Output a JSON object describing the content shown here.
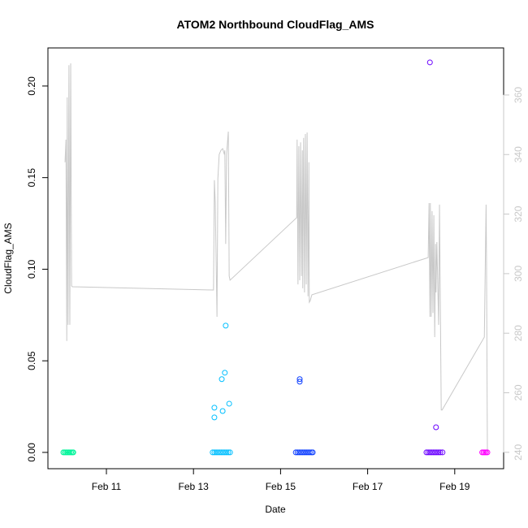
{
  "chart_data": {
    "type": "scatter",
    "title": "ATOM2 Northbound CloudFlag_AMS",
    "xlabel": "Date",
    "ylabel": "CloudFlag_AMS",
    "xlim": [
      9.657,
      20.123
    ],
    "xticks": [
      {
        "value": 11,
        "label": "Feb 11"
      },
      {
        "value": 13,
        "label": "Feb 13"
      },
      {
        "value": 15,
        "label": "Feb 15"
      },
      {
        "value": 17,
        "label": "Feb 17"
      },
      {
        "value": 19,
        "label": "Feb 19"
      }
    ],
    "ylim": [
      -0.0089,
      0.2208
    ],
    "yticks": [
      {
        "value": 0,
        "label": "0.00"
      },
      {
        "value": 0.05,
        "label": "0.05"
      },
      {
        "value": 0.1,
        "label": "0.10"
      },
      {
        "value": 0.15,
        "label": "0.15"
      },
      {
        "value": 0.2,
        "label": "0.20"
      }
    ],
    "y2lim": [
      234.5,
      375.8
    ],
    "y2ticks": [
      240,
      260,
      280,
      300,
      320,
      340,
      360
    ],
    "y2color": "#c8c8c8",
    "series": [
      {
        "color": "#00f59a",
        "x": [
          10.01,
          10.04,
          10.07,
          10.1,
          10.13,
          10.16,
          10.19,
          10.22,
          10.24
        ],
        "values": [
          0,
          0,
          0,
          0,
          0,
          0,
          0,
          0,
          0
        ]
      },
      {
        "color": "#00bfff",
        "x": [
          13.44,
          13.48,
          13.52,
          13.56,
          13.6,
          13.64,
          13.68,
          13.72,
          13.76,
          13.8,
          13.84,
          13.48,
          13.48,
          13.65,
          13.72,
          13.74,
          13.67,
          13.82
        ],
        "values": [
          0,
          0,
          0,
          0,
          0,
          0,
          0,
          0,
          0,
          0,
          0,
          0.0244,
          0.0191,
          0.04,
          0.0435,
          0.0692,
          0.0226,
          0.0266
        ]
      },
      {
        "color": "#0a3cff",
        "x": [
          15.35,
          15.39,
          15.43,
          15.47,
          15.51,
          15.55,
          15.59,
          15.63,
          15.67,
          15.71,
          15.74,
          15.44,
          15.44
        ],
        "values": [
          0,
          0,
          0,
          0,
          0,
          0,
          0,
          0,
          0,
          0,
          0,
          0.04,
          0.0386
        ]
      },
      {
        "color": "#6a00ff",
        "x": [
          18.35,
          18.39,
          18.43,
          18.47,
          18.51,
          18.55,
          18.59,
          18.63,
          18.67,
          18.72,
          18.43,
          18.57
        ],
        "values": [
          0,
          0,
          0,
          0,
          0,
          0,
          0,
          0,
          0,
          0,
          0.2129,
          0.0137
        ]
      },
      {
        "color": "#ff00ff",
        "x": [
          19.63,
          19.66,
          19.69,
          19.72,
          19.75
        ],
        "values": [
          0,
          0,
          0,
          0,
          0
        ]
      },
      {
        "color": "#c8c8c8",
        "axis": "y2",
        "x": [
          10.05,
          10.07,
          10.09,
          10.1,
          10.12,
          10.14,
          10.16,
          10.18,
          10.2,
          10.22,
          13.46,
          13.48,
          13.5,
          13.54,
          13.56,
          13.59,
          13.63,
          13.67,
          13.71,
          13.72,
          13.74,
          13.76,
          13.8,
          13.82,
          13.84,
          15.37,
          15.38,
          15.4,
          15.42,
          15.44,
          15.46,
          15.48,
          15.5,
          15.51,
          15.53,
          15.55,
          15.57,
          15.59,
          15.61,
          15.63,
          15.65,
          15.66,
          15.68,
          15.72,
          18.39,
          18.41,
          18.43,
          18.44,
          18.46,
          18.48,
          18.5,
          18.52,
          18.54,
          18.56,
          18.57,
          18.59,
          18.63,
          18.65,
          18.69,
          18.71,
          19.68,
          19.72,
          19.73,
          19.75
        ],
        "values": [
          337.4,
          345,
          277.4,
          359.2,
          282.8,
          370,
          282.8,
          370.6,
          295.9,
          295.6,
          294.5,
          331.4,
          323.7,
          285.5,
          331.9,
          340,
          341.4,
          342,
          340,
          341.4,
          310,
          340,
          347.7,
          299.2,
          297.8,
          318.8,
          345,
          296.4,
          342.8,
          297.8,
          344.1,
          299.2,
          341.4,
          295.1,
          345.6,
          293.7,
          346.9,
          296.4,
          347.4,
          292.4,
          337.4,
          290.4,
          290.9,
          292.9,
          305.4,
          323.7,
          285.5,
          323.7,
          285.5,
          321,
          286.8,
          319.6,
          278.7,
          310,
          293.7,
          310.6,
          282.8,
          323.2,
          254.2,
          254.2,
          278.7,
          323.2,
          304.6,
          240
        ]
      }
    ]
  }
}
